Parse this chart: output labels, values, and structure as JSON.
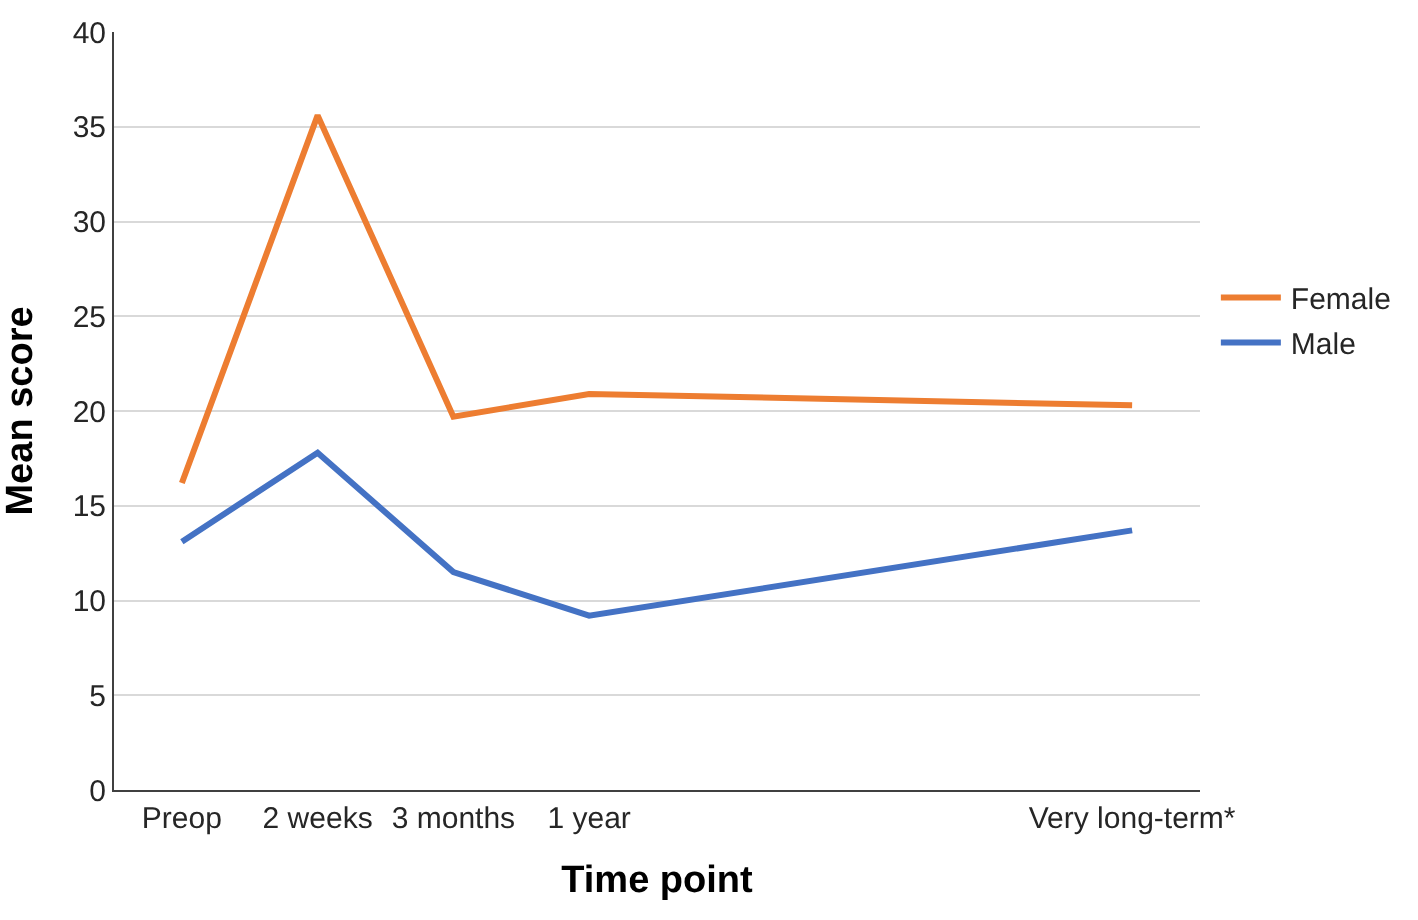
{
  "chart_data": {
    "type": "line",
    "xlabel": "Time point",
    "ylabel": "Mean score",
    "categories": [
      "Preop",
      "2 weeks",
      "3 months",
      "1 year",
      null,
      null,
      null,
      "Very long-term*"
    ],
    "series": [
      {
        "name": "Female",
        "color": "#ed7d31",
        "values": [
          16.2,
          35.6,
          19.7,
          20.9,
          null,
          null,
          null,
          20.3
        ]
      },
      {
        "name": "Male",
        "color": "#4472c4",
        "values": [
          13.1,
          17.8,
          11.5,
          9.2,
          null,
          null,
          null,
          13.7
        ]
      }
    ],
    "ylim": [
      0,
      40
    ],
    "yticks": [
      0,
      5,
      10,
      15,
      20,
      25,
      30,
      35,
      40
    ],
    "grid": "y",
    "legend": "right",
    "marker": "none",
    "line_style": "solid"
  }
}
